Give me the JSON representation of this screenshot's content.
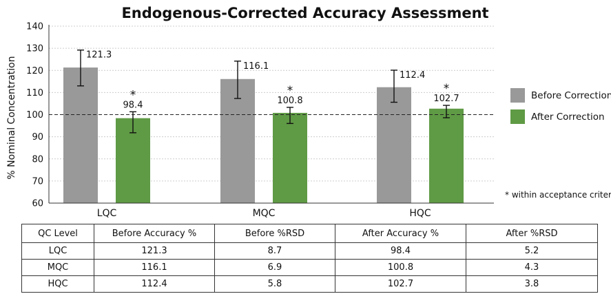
{
  "chart_data": {
    "type": "bar",
    "title": "Endogenous-Corrected Accuracy Assessment",
    "ylabel": "% Nominal Concentration",
    "ylim": [
      60,
      140
    ],
    "yticks": [
      60,
      70,
      80,
      90,
      100,
      110,
      120,
      130,
      140
    ],
    "grid": "horizontal dotted",
    "reference_line": 100,
    "categories": [
      "LQC",
      "MQC",
      "HQC"
    ],
    "series": [
      {
        "name": "Before Correction",
        "color": "#999999",
        "values": [
          121.3,
          116.1,
          112.4
        ],
        "error_low": [
          113,
          107.3,
          105.6
        ],
        "error_high": [
          129.2,
          124.2,
          120.1
        ],
        "labels": [
          "121.3",
          "116.1",
          "112.4"
        ]
      },
      {
        "name": "After Correction",
        "color": "#5f9a45",
        "values": [
          98.4,
          100.8,
          102.7
        ],
        "error_low": [
          91.8,
          96,
          98.6
        ],
        "error_high": [
          101.3,
          103.3,
          104.2
        ],
        "labels": [
          "98.4",
          "100.8",
          "102.7"
        ],
        "markers": [
          "*",
          "*",
          "*"
        ]
      }
    ],
    "legend_position": "right",
    "note": "* within acceptance criteria"
  },
  "table": {
    "headers": [
      "QC Level",
      "Before Accuracy %",
      "Before %RSD",
      "After Accuracy %",
      "After %RSD"
    ],
    "rows": [
      [
        "LQC",
        "121.3",
        "8.7",
        "98.4",
        "5.2"
      ],
      [
        "MQC",
        "116.1",
        "6.9",
        "100.8",
        "4.3"
      ],
      [
        "HQC",
        "112.4",
        "5.8",
        "102.7",
        "3.8"
      ]
    ]
  }
}
